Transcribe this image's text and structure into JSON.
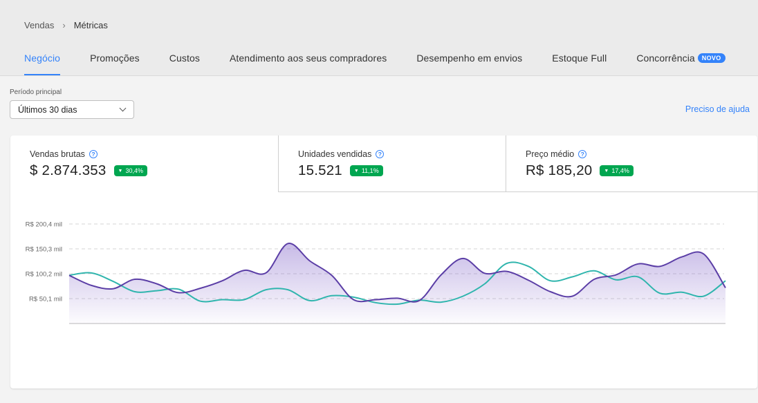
{
  "breadcrumb": {
    "parent": "Vendas",
    "current": "Métricas"
  },
  "tabs": [
    {
      "label": "Negócio",
      "active": true
    },
    {
      "label": "Promoções"
    },
    {
      "label": "Custos"
    },
    {
      "label": "Atendimento aos seus compradores"
    },
    {
      "label": "Desempenho em envios"
    },
    {
      "label": "Estoque Full"
    },
    {
      "label": "Concorrência",
      "badge": "NOVO"
    }
  ],
  "period": {
    "label": "Período principal",
    "value": "Últimos 30 dias"
  },
  "help_link": "Preciso de ajuda",
  "metrics": [
    {
      "title": "Vendas brutas",
      "value": "$ 2.874.353",
      "delta": "30,4%"
    },
    {
      "title": "Unidades vendidas",
      "value": "15.521",
      "delta": "11,1%"
    },
    {
      "title": "Preço médio",
      "value": "R$ 185,20",
      "delta": "17,4%"
    }
  ],
  "colors": {
    "accent": "#3483fa",
    "positive": "#00a650",
    "series_main": "#5b3ea6",
    "series_compare": "#2fb5ad"
  },
  "chart_data": {
    "type": "area",
    "y_tick_labels": [
      "R$ 200,4 mil",
      "R$ 150,3 mil",
      "R$ 100,2 mil",
      "R$ 50,1 mil"
    ],
    "y_ticks": [
      200.4,
      150.3,
      100.2,
      50.1
    ],
    "ylim": [
      0,
      200.4
    ],
    "grid": true,
    "series": [
      {
        "values": [
          97,
          77,
          70,
          89,
          80,
          62,
          71,
          86,
          107,
          102,
          161,
          126,
          97,
          48,
          48,
          51,
          46,
          98,
          131,
          101,
          105,
          87,
          64,
          55,
          89,
          98,
          120,
          115,
          134,
          140,
          72
        ]
      },
      {
        "values": [
          97,
          102,
          85,
          64,
          66,
          69,
          45,
          48,
          48,
          68,
          68,
          46,
          56,
          53,
          42,
          39,
          47,
          43,
          55,
          80,
          121,
          115,
          86,
          94,
          106,
          88,
          94,
          61,
          63,
          55,
          86
        ]
      }
    ]
  }
}
